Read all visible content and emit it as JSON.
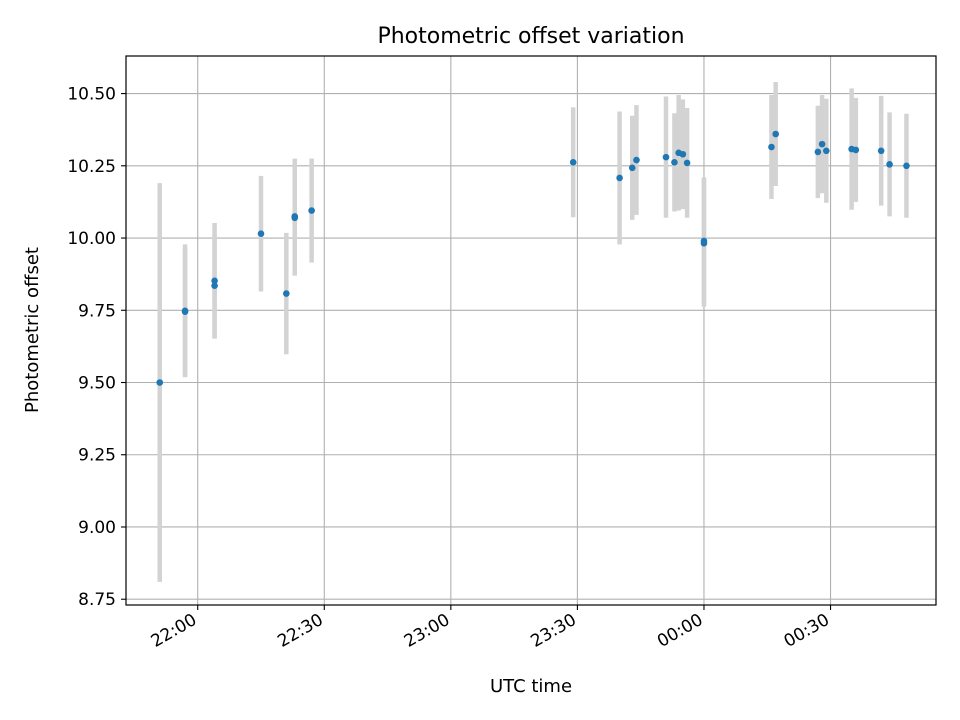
{
  "chart_data": {
    "type": "scatter",
    "title": "Photometric offset variation",
    "xlabel": "UTC time",
    "ylabel": "Photometric offset",
    "x_axis_kind": "time",
    "xlim": [
      "21:43",
      "00:55"
    ],
    "ylim": [
      8.73,
      10.63
    ],
    "grid": true,
    "x_ticks": [
      "22:00",
      "22:30",
      "23:00",
      "23:30",
      "00:00",
      "00:30"
    ],
    "y_ticks": [
      "8.75",
      "9.00",
      "9.25",
      "9.50",
      "9.75",
      "10.00",
      "10.25",
      "10.50"
    ],
    "series": [
      {
        "marker_color": "#1f77b4",
        "errorbar_color": "#d3d3d3",
        "points": [
          {
            "x": "21:51",
            "y": 9.5,
            "err": 0.69
          },
          {
            "x": "21:57",
            "y": 9.745,
            "err": 0.22
          },
          {
            "x": "21:57",
            "y": 9.748,
            "err": 0.23
          },
          {
            "x": "22:04",
            "y": 9.835,
            "err": 0.18
          },
          {
            "x": "22:04",
            "y": 9.852,
            "err": 0.2
          },
          {
            "x": "22:15",
            "y": 10.015,
            "err": 0.2
          },
          {
            "x": "22:21",
            "y": 9.808,
            "err": 0.21
          },
          {
            "x": "22:23",
            "y": 10.07,
            "err": 0.2
          },
          {
            "x": "22:23",
            "y": 10.075,
            "err": 0.2
          },
          {
            "x": "22:27",
            "y": 10.095,
            "err": 0.18
          },
          {
            "x": "23:29",
            "y": 10.262,
            "err": 0.19
          },
          {
            "x": "23:40",
            "y": 10.208,
            "err": 0.23
          },
          {
            "x": "23:43",
            "y": 10.243,
            "err": 0.18
          },
          {
            "x": "23:44",
            "y": 10.27,
            "err": 0.19
          },
          {
            "x": "23:51",
            "y": 10.28,
            "err": 0.21
          },
          {
            "x": "23:53",
            "y": 10.262,
            "err": 0.17
          },
          {
            "x": "23:54",
            "y": 10.295,
            "err": 0.2
          },
          {
            "x": "23:55",
            "y": 10.29,
            "err": 0.19
          },
          {
            "x": "23:56",
            "y": 10.26,
            "err": 0.19
          },
          {
            "x": "00:00",
            "y": 9.982,
            "err": 0.22
          },
          {
            "x": "00:00",
            "y": 9.99,
            "err": 0.22
          },
          {
            "x": "00:16",
            "y": 10.315,
            "err": 0.18
          },
          {
            "x": "00:17",
            "y": 10.36,
            "err": 0.18
          },
          {
            "x": "00:27",
            "y": 10.298,
            "err": 0.16
          },
          {
            "x": "00:28",
            "y": 10.325,
            "err": 0.17
          },
          {
            "x": "00:29",
            "y": 10.302,
            "err": 0.18
          },
          {
            "x": "00:35",
            "y": 10.308,
            "err": 0.21
          },
          {
            "x": "00:36",
            "y": 10.305,
            "err": 0.18
          },
          {
            "x": "00:42",
            "y": 10.302,
            "err": 0.19
          },
          {
            "x": "00:44",
            "y": 10.255,
            "err": 0.18
          },
          {
            "x": "00:48",
            "y": 10.25,
            "err": 0.18
          }
        ]
      }
    ]
  }
}
